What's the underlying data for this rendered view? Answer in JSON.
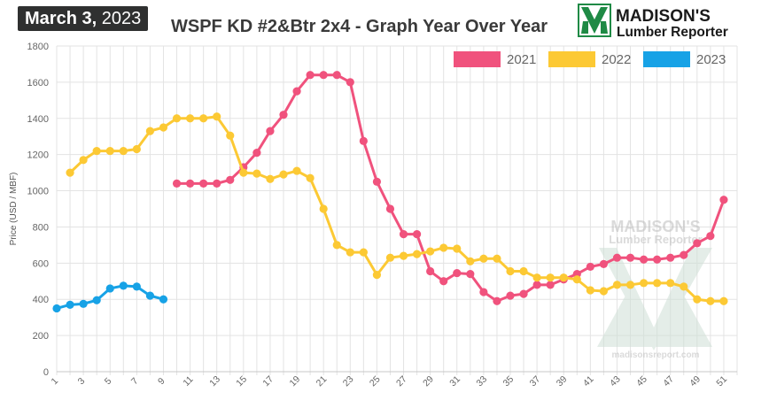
{
  "header": {
    "date_bold": "March 3,",
    "date_year": "2023",
    "title": "WSPF KD #2&Btr 2x4 - Graph Year Over Year",
    "logo_line1": "MADISON'S",
    "logo_line2": "Lumber Reporter"
  },
  "watermark": {
    "line1": "MADISON'S",
    "line2": "Lumber Reporter",
    "url": "madisonsreport.com"
  },
  "colors": {
    "2021": "#f0527d",
    "2022": "#fcc934",
    "2023": "#17a2e6",
    "grid": "#e3e3e3",
    "logo_green": "#1f8a45"
  },
  "chart_data": {
    "type": "line",
    "title": "WSPF KD #2&Btr 2x4 - Graph Year Over Year",
    "xlabel": "",
    "ylabel": "Price (USD / MBF)",
    "ylim": [
      0,
      1800
    ],
    "xlim": [
      1,
      52
    ],
    "yticks": [
      0,
      200,
      400,
      600,
      800,
      1000,
      1200,
      1400,
      1600,
      1800
    ],
    "xticks": [
      1,
      3,
      5,
      7,
      9,
      11,
      13,
      15,
      17,
      19,
      21,
      23,
      25,
      27,
      29,
      31,
      33,
      35,
      37,
      39,
      41,
      43,
      45,
      47,
      49,
      51
    ],
    "grid": true,
    "legend_position": "top-right",
    "series": [
      {
        "name": "2021",
        "x": [
          10,
          11,
          12,
          13,
          14,
          15,
          16,
          17,
          18,
          19,
          20,
          21,
          22,
          23,
          24,
          25,
          26,
          27,
          28,
          29,
          30,
          31,
          32,
          33,
          34,
          35,
          36,
          37,
          38,
          39,
          40,
          41,
          42,
          43,
          44,
          45,
          46,
          47,
          48,
          49,
          50,
          51
        ],
        "values": [
          1040,
          1040,
          1040,
          1040,
          1060,
          1130,
          1210,
          1330,
          1420,
          1550,
          1640,
          1640,
          1640,
          1600,
          1275,
          1050,
          900,
          760,
          760,
          555,
          500,
          545,
          540,
          440,
          390,
          420,
          430,
          480,
          480,
          510,
          540,
          580,
          595,
          630,
          630,
          620,
          620,
          630,
          645,
          710,
          750,
          950
        ]
      },
      {
        "name": "2022",
        "x": [
          2,
          3,
          4,
          5,
          6,
          7,
          8,
          9,
          10,
          11,
          12,
          13,
          14,
          15,
          16,
          17,
          18,
          19,
          20,
          21,
          22,
          23,
          24,
          25,
          26,
          27,
          28,
          29,
          30,
          31,
          32,
          33,
          34,
          35,
          36,
          37,
          38,
          39,
          40,
          41,
          42,
          43,
          44,
          45,
          46,
          47,
          48,
          49,
          50,
          51
        ],
        "values": [
          1100,
          1170,
          1220,
          1220,
          1220,
          1230,
          1330,
          1350,
          1400,
          1400,
          1400,
          1410,
          1305,
          1100,
          1095,
          1065,
          1090,
          1110,
          1070,
          900,
          700,
          660,
          660,
          535,
          630,
          640,
          650,
          665,
          685,
          680,
          610,
          625,
          625,
          555,
          555,
          520,
          520,
          520,
          510,
          450,
          445,
          480,
          480,
          490,
          490,
          490,
          470,
          400,
          390,
          390
        ]
      },
      {
        "name": "2023",
        "x": [
          1,
          2,
          3,
          4,
          5,
          6,
          7,
          8,
          9
        ],
        "values": [
          350,
          370,
          375,
          395,
          460,
          475,
          470,
          420,
          400
        ]
      }
    ]
  }
}
